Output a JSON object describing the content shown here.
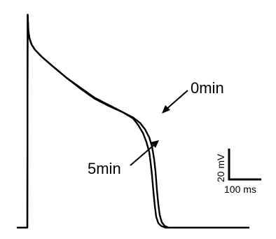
{
  "chart_data": {
    "type": "line",
    "title": "",
    "xlabel": "",
    "ylabel": "",
    "xlim": [
      0,
      330
    ],
    "ylim": [
      -85,
      40
    ],
    "axes_visible": false,
    "grid": false,
    "legend": "none",
    "series": [
      {
        "name": "0min",
        "color": "#000000",
        "x": [
          0,
          14,
          14.5,
          15.5,
          17,
          20,
          25,
          35,
          50,
          70,
          90,
          110,
          130,
          150,
          165,
          175,
          182,
          188,
          192,
          195,
          197,
          199,
          201,
          203,
          206,
          210,
          216,
          230,
          260,
          330
        ],
        "y": [
          -83,
          -83,
          35,
          26,
          22,
          18.5,
          15.5,
          11.5,
          6.5,
          0,
          -6,
          -11.5,
          -15.5,
          -19,
          -22,
          -25,
          -28.5,
          -33,
          -38,
          -45,
          -52,
          -62,
          -70,
          -76,
          -80,
          -82,
          -83,
          -83,
          -83,
          -83
        ]
      },
      {
        "name": "5min",
        "color": "#000000",
        "x": [
          0,
          14,
          14.5,
          15.5,
          17,
          20,
          25,
          35,
          50,
          70,
          90,
          110,
          130,
          150,
          165,
          172,
          179,
          184,
          188,
          190,
          192,
          194,
          196,
          198,
          201,
          205,
          211,
          225,
          260,
          330
        ],
        "y": [
          -83,
          -83,
          35,
          26,
          22,
          18.5,
          15.5,
          11.5,
          6.5,
          0,
          -5.5,
          -11,
          -15,
          -19,
          -22.5,
          -26,
          -30.5,
          -35.5,
          -41,
          -47,
          -54,
          -63,
          -71,
          -77,
          -80.5,
          -82,
          -83,
          -83,
          -83,
          -83
        ]
      }
    ],
    "annotations": [
      {
        "text": "0min",
        "series": "0min",
        "x": 197,
        "y": -40
      },
      {
        "text": "5min",
        "series": "5min",
        "x": 187,
        "y": -54
      }
    ],
    "scale_bar": {
      "vertical": {
        "value": 20,
        "unit": "mV",
        "label": "20 mV"
      },
      "horizontal": {
        "value": 100,
        "unit": "ms",
        "label": "100 ms"
      }
    }
  }
}
